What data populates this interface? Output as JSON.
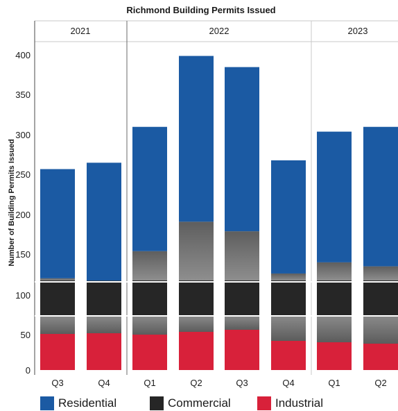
{
  "chart_data": {
    "type": "bar",
    "stacked": true,
    "broken_axis": true,
    "title": "Richmond Building Permits Issued",
    "ylabel": "Number of Building Permits Issued",
    "groups": [
      {
        "label": "2021",
        "categories": [
          "Q3",
          "Q4"
        ]
      },
      {
        "label": "2022",
        "categories": [
          "Q1",
          "Q2",
          "Q3",
          "Q4"
        ]
      },
      {
        "label": "2023",
        "categories": [
          "Q1",
          "Q2"
        ]
      }
    ],
    "categories": [
      "Q3",
      "Q4",
      "Q1",
      "Q2",
      "Q3",
      "Q4",
      "Q1",
      "Q2"
    ],
    "upper_ticks": [
      "150",
      "200",
      "250",
      "300",
      "350",
      "400"
    ],
    "lower_ticks": [
      "0",
      "50",
      "100"
    ],
    "series": [
      {
        "name": "Industrial",
        "color": "#d8213a",
        "values": [
          52,
          53,
          51,
          55,
          58,
          42,
          40,
          38
        ]
      },
      {
        "name": "Commercial",
        "color": "#262626",
        "values": [
          72,
          68,
          107,
          140,
          125,
          88,
          104,
          101
        ]
      },
      {
        "name": "Residential",
        "color": "#1b5aa3",
        "values": [
          137,
          148,
          156,
          208,
          206,
          142,
          164,
          175
        ]
      }
    ],
    "totals": [
      261,
      269,
      314,
      403,
      389,
      272,
      308,
      314
    ],
    "legend_position": "bottom",
    "grid": false
  }
}
